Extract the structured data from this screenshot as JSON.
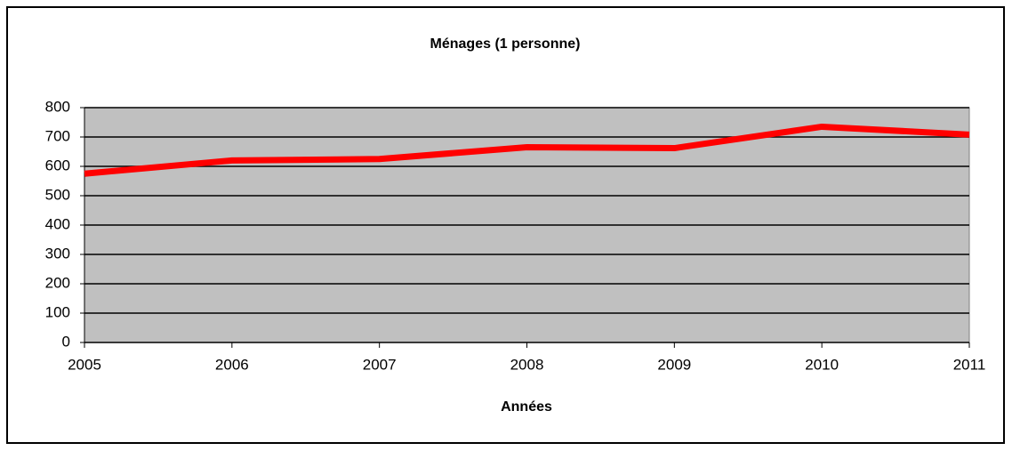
{
  "chart_data": {
    "type": "line",
    "title": "Ménages  (1 personne)",
    "x_label": "Années",
    "x": [
      2005,
      2006,
      2007,
      2008,
      2009,
      2010,
      2011
    ],
    "series": [
      {
        "name": "Ménages (1 personne)",
        "color": "#ff0000",
        "values": [
          575,
          620,
          625,
          665,
          662,
          735,
          708
        ]
      }
    ],
    "xlim": [
      2005,
      2011
    ],
    "xticks": [
      2005,
      2006,
      2007,
      2008,
      2009,
      2010,
      2011
    ],
    "ylim": [
      0,
      800
    ],
    "yticks": [
      0,
      100,
      200,
      300,
      400,
      500,
      600,
      700,
      800
    ],
    "grid": true,
    "plot_background": "#c0c0c0"
  }
}
